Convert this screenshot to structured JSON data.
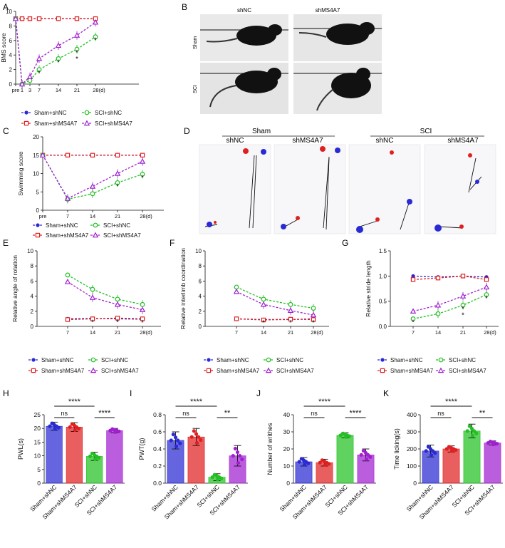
{
  "colors": {
    "blue": "#2a2ad4",
    "red": "#e02020",
    "green": "#22c022",
    "purple": "#a020d0",
    "ink": "#111111"
  },
  "chart_data": [
    {
      "id": "A",
      "type": "line",
      "panel_letter": "A",
      "ylabel": "BMS score",
      "ylim": [
        0,
        10
      ],
      "yticks": [
        "0",
        "2",
        "4",
        "6",
        "8",
        "10"
      ],
      "xticks": [
        "pre",
        "1",
        "3",
        "7",
        "14",
        "21",
        "28(d)"
      ],
      "series": [
        {
          "name": "Sham+shNC",
          "color_key": "blue",
          "marker": "circle",
          "values": [
            9,
            9,
            9,
            9,
            9,
            9,
            9
          ]
        },
        {
          "name": "Sham+shMS4A7",
          "color_key": "red",
          "marker": "square",
          "values": [
            9,
            9,
            9,
            9,
            9,
            9,
            9
          ]
        },
        {
          "name": "SCI+shNC",
          "color_key": "green",
          "marker": "circle-open",
          "values": [
            9,
            0,
            0.5,
            2,
            3.5,
            4.8,
            6.5
          ]
        },
        {
          "name": "SCI+shMS4A7",
          "color_key": "purple",
          "marker": "triangle-open",
          "values": [
            9,
            0,
            1,
            3.5,
            5.3,
            6.7,
            8.5
          ]
        }
      ],
      "sig": [
        {
          "x_index": 3,
          "text": "*"
        },
        {
          "x_index": 4,
          "text": "*"
        },
        {
          "x_index": 5,
          "text": "*"
        },
        {
          "x_index": 5,
          "text": "*"
        },
        {
          "x_index": 6,
          "text": "*"
        }
      ]
    },
    {
      "id": "C",
      "type": "line",
      "panel_letter": "C",
      "ylabel": "Swimming score",
      "ylim": [
        0,
        20
      ],
      "yticks": [
        "0",
        "5",
        "10",
        "15",
        "20"
      ],
      "xticks": [
        "pre",
        "7",
        "14",
        "21",
        "28(d)"
      ],
      "series": [
        {
          "name": "Sham+shNC",
          "color_key": "blue",
          "marker": "circle",
          "values": [
            15,
            15,
            15,
            15,
            15
          ]
        },
        {
          "name": "Sham+shMS4A7",
          "color_key": "red",
          "marker": "square",
          "values": [
            15,
            15,
            15,
            15,
            15
          ]
        },
        {
          "name": "SCI+shNC",
          "color_key": "green",
          "marker": "circle-open",
          "values": [
            15,
            3,
            4.5,
            7.5,
            9.8
          ]
        },
        {
          "name": "SCI+shMS4A7",
          "color_key": "purple",
          "marker": "triangle-open",
          "values": [
            15,
            3.2,
            6.5,
            10,
            13.3
          ]
        }
      ],
      "sig": [
        {
          "x_index": 3,
          "text": "*"
        },
        {
          "x_index": 4,
          "text": "*"
        }
      ]
    },
    {
      "id": "E",
      "type": "line",
      "panel_letter": "E",
      "ylabel": "Relative angle of rotation",
      "ylim": [
        0,
        10
      ],
      "yticks": [
        "0",
        "2",
        "4",
        "6",
        "8",
        "10"
      ],
      "xticks": [
        "7",
        "14",
        "21",
        "28(d)"
      ],
      "series": [
        {
          "name": "Sham+shNC",
          "color_key": "blue",
          "marker": "circle",
          "values": [
            1,
            1.05,
            1,
            0.95
          ]
        },
        {
          "name": "Sham+shMS4A7",
          "color_key": "red",
          "marker": "square",
          "values": [
            0.9,
            1,
            1.1,
            1
          ]
        },
        {
          "name": "SCI+shNC",
          "color_key": "green",
          "marker": "circle-open",
          "values": [
            6.8,
            4.9,
            3.6,
            2.9
          ]
        },
        {
          "name": "SCI+shMS4A7",
          "color_key": "purple",
          "marker": "triangle-open",
          "values": [
            5.9,
            3.8,
            2.9,
            2.2
          ]
        }
      ],
      "sig": [
        {
          "x_index": 1,
          "text": "*"
        },
        {
          "x_index": 2,
          "text": "*"
        },
        {
          "x_index": 3,
          "text": "*"
        }
      ]
    },
    {
      "id": "F",
      "type": "line",
      "panel_letter": "F",
      "ylabel": "Relative interlimb coordination",
      "ylim": [
        0,
        10
      ],
      "yticks": [
        "0",
        "2",
        "4",
        "6",
        "8",
        "10"
      ],
      "xticks": [
        "7",
        "14",
        "21",
        "28(d)"
      ],
      "series": [
        {
          "name": "Sham+shNC",
          "color_key": "blue",
          "marker": "circle",
          "values": [
            1,
            0.9,
            0.9,
            1
          ]
        },
        {
          "name": "Sham+shMS4A7",
          "color_key": "red",
          "marker": "square",
          "values": [
            1,
            0.85,
            0.95,
            0.9
          ]
        },
        {
          "name": "SCI+shNC",
          "color_key": "green",
          "marker": "circle-open",
          "values": [
            5.2,
            3.6,
            2.9,
            2.4
          ]
        },
        {
          "name": "SCI+shMS4A7",
          "color_key": "purple",
          "marker": "triangle-open",
          "values": [
            4.6,
            2.9,
            2.1,
            1.5
          ]
        }
      ],
      "sig": [
        {
          "x_index": 1,
          "text": "*"
        },
        {
          "x_index": 2,
          "text": "*"
        },
        {
          "x_index": 3,
          "text": "*"
        }
      ]
    },
    {
      "id": "G",
      "type": "line",
      "panel_letter": "G",
      "ylabel": "Relative stride length",
      "ylim": [
        0,
        1.5
      ],
      "yticks": [
        "0.0",
        "0.5",
        "1.0",
        "1.5"
      ],
      "xticks": [
        "7",
        "14",
        "21",
        "28(d)"
      ],
      "series": [
        {
          "name": "Sham+shNC",
          "color_key": "blue",
          "marker": "circle",
          "values": [
            1,
            0.98,
            1,
            0.98
          ]
        },
        {
          "name": "Sham+shMS4A7",
          "color_key": "red",
          "marker": "square",
          "values": [
            0.93,
            0.96,
            1,
            0.93
          ]
        },
        {
          "name": "SCI+shNC",
          "color_key": "green",
          "marker": "circle-open",
          "values": [
            0.15,
            0.25,
            0.42,
            0.63
          ]
        },
        {
          "name": "SCI+shMS4A7",
          "color_key": "purple",
          "marker": "triangle-open",
          "values": [
            0.3,
            0.42,
            0.6,
            0.78
          ]
        }
      ],
      "sig": [
        {
          "x_index": 0,
          "text": "*"
        },
        {
          "x_index": 2,
          "text": "*"
        },
        {
          "x_index": 2,
          "text": "*"
        },
        {
          "x_index": 3,
          "text": "*"
        }
      ]
    },
    {
      "id": "H",
      "type": "bar",
      "panel_letter": "H",
      "ylabel": "PWL(s)",
      "ylim": [
        0,
        25
      ],
      "yticks": [
        "0",
        "5",
        "10",
        "15",
        "20",
        "25"
      ],
      "categories": [
        "Sham+shNC",
        "Sham+shMS4A7",
        "SCI+shNC",
        "SCI+shMS4A7"
      ],
      "values": [
        20.8,
        20.5,
        9.8,
        19.2
      ],
      "err": [
        1.5,
        1.6,
        1.5,
        0.8
      ],
      "brackets": [
        {
          "from": 0,
          "to": 2,
          "text": "****",
          "level": 0
        },
        {
          "from": 0,
          "to": 1,
          "text": "ns",
          "level": 1
        },
        {
          "from": 2,
          "to": 3,
          "text": "****",
          "level": 1
        }
      ]
    },
    {
      "id": "I",
      "type": "bar",
      "panel_letter": "I",
      "ylabel": "PWT(g)",
      "ylim": [
        0,
        0.8
      ],
      "yticks": [
        "0.0",
        "0.2",
        "0.4",
        "0.6",
        "0.8"
      ],
      "categories": [
        "Sham+shNC",
        "Sham+shMS4A7",
        "SCI+shNC",
        "SCI+shMS4A7"
      ],
      "values": [
        0.5,
        0.54,
        0.07,
        0.32
      ],
      "err": [
        0.1,
        0.1,
        0.04,
        0.12
      ],
      "brackets": [
        {
          "from": 0,
          "to": 2,
          "text": "****",
          "level": 0
        },
        {
          "from": 0,
          "to": 1,
          "text": "ns",
          "level": 1
        },
        {
          "from": 2,
          "to": 3,
          "text": "**",
          "level": 1
        }
      ]
    },
    {
      "id": "J",
      "type": "bar",
      "panel_letter": "J",
      "ylabel": "Number of writhes",
      "ylim": [
        0,
        40
      ],
      "yticks": [
        "0",
        "10",
        "20",
        "30",
        "40"
      ],
      "categories": [
        "Sham+shNC",
        "Sham+shMS4A7",
        "SCI+shNC",
        "SCI+shMS4A7"
      ],
      "values": [
        12.5,
        12,
        28,
        16.5
      ],
      "err": [
        2.5,
        2,
        1.5,
        3.5
      ],
      "brackets": [
        {
          "from": 0,
          "to": 2,
          "text": "****",
          "level": 0
        },
        {
          "from": 0,
          "to": 1,
          "text": "ns",
          "level": 1
        },
        {
          "from": 2,
          "to": 3,
          "text": "****",
          "level": 1
        }
      ]
    },
    {
      "id": "K",
      "type": "bar",
      "panel_letter": "K",
      "ylabel": "Time licking(s)",
      "ylim": [
        0,
        400
      ],
      "yticks": [
        "0",
        "100",
        "200",
        "300",
        "400"
      ],
      "categories": [
        "Sham+shNC",
        "Sham+shMS4A7",
        "SCI+shNC",
        "SCI+shMS4A7"
      ],
      "values": [
        188,
        200,
        305,
        235
      ],
      "err": [
        35,
        18,
        40,
        12
      ],
      "brackets": [
        {
          "from": 0,
          "to": 2,
          "text": "****",
          "level": 0
        },
        {
          "from": 0,
          "to": 1,
          "text": "ns",
          "level": 1
        },
        {
          "from": 2,
          "to": 3,
          "text": "**",
          "level": 1
        }
      ]
    }
  ],
  "photo_b": {
    "panel_letter": "B",
    "col_labels": [
      "shNC",
      "shMS4A7"
    ],
    "row_labels": [
      "Sham",
      "SCI"
    ]
  },
  "photo_d": {
    "panel_letter": "D",
    "group_labels": [
      "Sham",
      "SCI"
    ],
    "col_labels": [
      "shNC",
      "shMS4A7",
      "shNC",
      "shMS4A7"
    ]
  }
}
